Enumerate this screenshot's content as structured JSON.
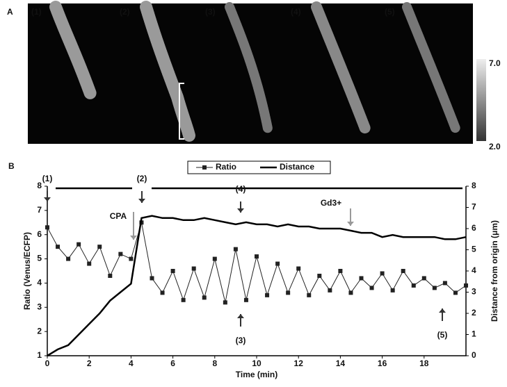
{
  "panel_a": {
    "label": "A",
    "frames": [
      "(1)",
      "(2)",
      "(3)",
      "(4)",
      "(5)"
    ],
    "colorbar_ticks": [
      "7.0",
      "2.0"
    ]
  },
  "chart_data": {
    "type": "line",
    "panel_label": "B",
    "x_label": "Time (min)",
    "y_label": "Ratio (Venus/ECFP)",
    "y2_label": "Distance from origin (μm)",
    "x": [
      0,
      0.5,
      1,
      1.5,
      2,
      2.5,
      3,
      3.5,
      4,
      4.5,
      5,
      5.5,
      6,
      6.5,
      7,
      7.5,
      8,
      8.5,
      9,
      9.5,
      10,
      10.5,
      11,
      11.5,
      12,
      12.5,
      13,
      13.5,
      14,
      14.5,
      15,
      15.5,
      16,
      16.5,
      17,
      17.5,
      18,
      18.5,
      19,
      19.5,
      20
    ],
    "series": [
      {
        "name": "Ratio",
        "color": "#222222",
        "marker": "square",
        "values": [
          6.3,
          5.5,
          5.0,
          5.6,
          4.8,
          5.5,
          4.3,
          5.2,
          5.0,
          6.5,
          4.2,
          3.6,
          4.5,
          3.3,
          4.6,
          3.4,
          5.0,
          3.2,
          5.4,
          3.3,
          5.1,
          3.5,
          4.8,
          3.6,
          4.6,
          3.5,
          4.3,
          3.7,
          4.5,
          3.6,
          4.2,
          3.8,
          4.4,
          3.7,
          4.5,
          3.9,
          4.2,
          3.8,
          4.0,
          3.6,
          3.9
        ]
      },
      {
        "name": "Distance",
        "color": "#000000",
        "axis": "y2",
        "values": [
          0,
          0.3,
          0.5,
          1.0,
          1.5,
          2.0,
          2.6,
          3.0,
          3.4,
          6.5,
          6.6,
          6.5,
          6.5,
          6.4,
          6.4,
          6.5,
          6.4,
          6.3,
          6.2,
          6.3,
          6.2,
          6.2,
          6.1,
          6.2,
          6.1,
          6.1,
          6.0,
          6.0,
          6.0,
          5.9,
          5.8,
          5.8,
          5.6,
          5.7,
          5.6,
          5.6,
          5.6,
          5.6,
          5.5,
          5.5,
          5.6
        ]
      }
    ],
    "annotations": [
      "(1)",
      "(2)",
      "(4)",
      "(3)",
      "(5)",
      "CPA",
      "Gd3+"
    ],
    "xlim": [
      0,
      20
    ],
    "xticks": [
      0,
      2,
      4,
      6,
      8,
      10,
      12,
      14,
      16,
      18
    ],
    "ylim": [
      1,
      8
    ],
    "yticks": [
      1,
      2,
      3,
      4,
      5,
      6,
      7,
      8
    ],
    "y2lim": [
      0,
      8
    ],
    "y2ticks": [
      0,
      1,
      2,
      3,
      4,
      5,
      6,
      7,
      8
    ]
  }
}
